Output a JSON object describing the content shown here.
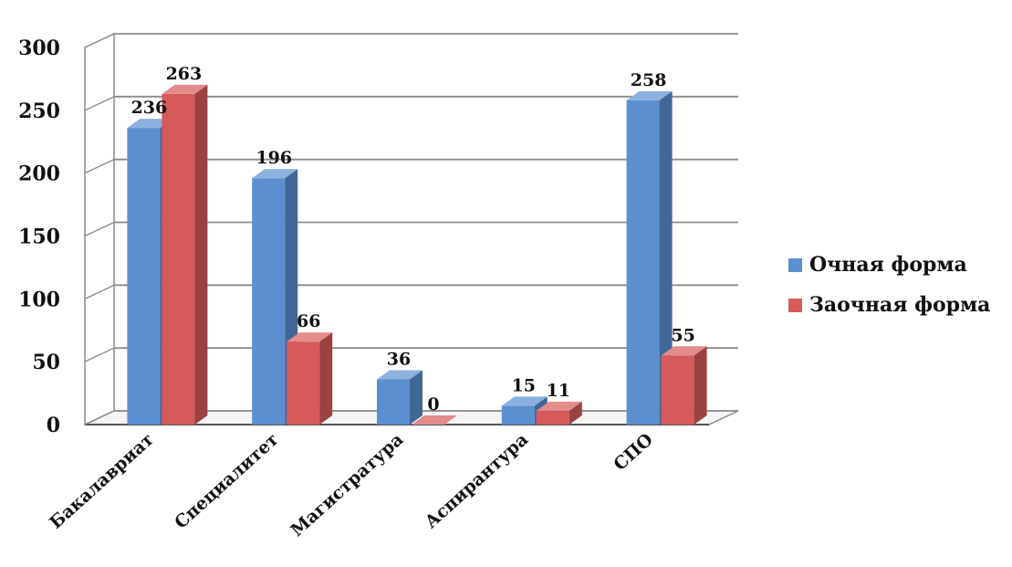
{
  "chart_data": {
    "type": "bar",
    "categories": [
      "Бакалавриат",
      "Специалитет",
      "Магистратура",
      "Аспирантура",
      "СПО"
    ],
    "series": [
      {
        "name": "Очная форма",
        "values": [
          236,
          196,
          36,
          15,
          258
        ],
        "color": "#5b8fd0"
      },
      {
        "name": "Заочная форма",
        "values": [
          263,
          66,
          0,
          11,
          55
        ],
        "color": "#d65a5a"
      }
    ],
    "ylim": [
      0,
      300
    ],
    "yticks": [
      "0",
      "50",
      "100",
      "150",
      "200",
      "250",
      "300"
    ],
    "grid": true,
    "legend": "right",
    "style": "3d-column"
  },
  "legend": {
    "items": [
      {
        "label": "Очная форма",
        "color": "#5b8fd0"
      },
      {
        "label": "Заочная форма",
        "color": "#d65a5a"
      }
    ]
  }
}
